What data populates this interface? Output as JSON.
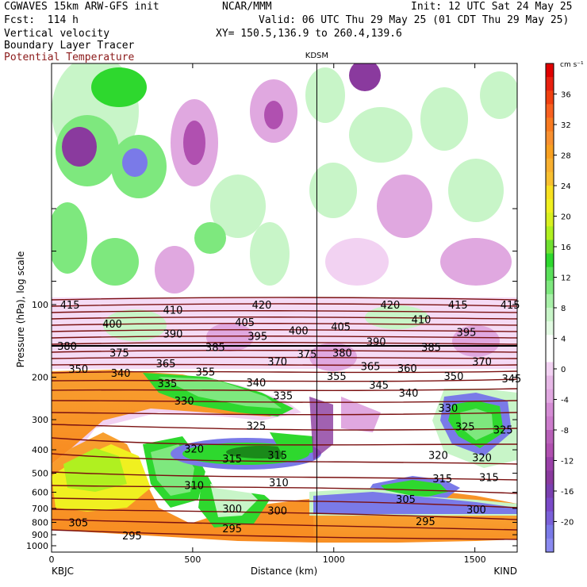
{
  "header": {
    "left": [
      "CGWAVES 15km ARW-GFS init",
      "Fcst:  114 h",
      "Vertical velocity",
      "Boundary Layer Tracer",
      "Potential Temperature"
    ],
    "center": "NCAR/MMM",
    "right": [
      "Init: 12 UTC Sat 24 May 25",
      "Valid: 06 UTC Thu 29 May 25 (01 CDT Thu 29 May 25)",
      "XY= 150.5,136.9 to 260.4,139.6"
    ]
  },
  "colors": {
    "theta_contour": "#7a1010",
    "ascent_ramp": [
      "#eeffee",
      "#c8f5c8",
      "#7ee87e",
      "#2ed82e",
      "#b0f020",
      "#f0f020",
      "#f8c030",
      "#f8a020",
      "#f87a20",
      "#f04010",
      "#e00000",
      "#c00000"
    ],
    "descent_ramp": [
      "#f2d2f2",
      "#e0a8e0",
      "#cc7ccc",
      "#b050b0",
      "#8a3a9e",
      "#7a4ac8",
      "#7a7ae8"
    ],
    "tracer": "#e06010"
  },
  "chart_data": {
    "type": "heatmap",
    "title": "KDSM",
    "xlabel": "Distance (km)",
    "ylabel": "Pressure (hPa), log scale",
    "xlim": [
      0,
      1650
    ],
    "ylim": [
      1000,
      0
    ],
    "y_scale": "log",
    "x_ticks": [
      0,
      500,
      1000,
      1500
    ],
    "y_ticks": [
      100,
      200,
      300,
      400,
      500,
      600,
      700,
      800,
      900,
      1000
    ],
    "x_endpoints": [
      "KBJC",
      "KIND"
    ],
    "marker_x_km": 940,
    "marker_label": "KDSM",
    "colorbar": {
      "unit": "cm s⁻¹",
      "labels": [
        36,
        32,
        28,
        24,
        20,
        16,
        12,
        8,
        4,
        0,
        -4,
        -8,
        -12,
        -16,
        -20
      ]
    },
    "theta_labels": [
      {
        "v": "415",
        "x": 65,
        "p": 100
      },
      {
        "v": "410",
        "x": 430,
        "p": 105
      },
      {
        "v": "420",
        "x": 745,
        "p": 100
      },
      {
        "v": "420",
        "x": 1200,
        "p": 100
      },
      {
        "v": "415",
        "x": 1440,
        "p": 100
      },
      {
        "v": "415",
        "x": 1625,
        "p": 100
      },
      {
        "v": "400",
        "x": 215,
        "p": 120
      },
      {
        "v": "405",
        "x": 685,
        "p": 118
      },
      {
        "v": "410",
        "x": 1310,
        "p": 115
      },
      {
        "v": "390",
        "x": 430,
        "p": 132
      },
      {
        "v": "395",
        "x": 730,
        "p": 135
      },
      {
        "v": "400",
        "x": 875,
        "p": 128
      },
      {
        "v": "405",
        "x": 1025,
        "p": 123
      },
      {
        "v": "395",
        "x": 1470,
        "p": 130
      },
      {
        "v": "380",
        "x": 55,
        "p": 148
      },
      {
        "v": "375",
        "x": 240,
        "p": 158
      },
      {
        "v": "385",
        "x": 580,
        "p": 150
      },
      {
        "v": "390",
        "x": 1150,
        "p": 142
      },
      {
        "v": "385",
        "x": 1345,
        "p": 150
      },
      {
        "v": "365",
        "x": 405,
        "p": 175
      },
      {
        "v": "370",
        "x": 800,
        "p": 172
      },
      {
        "v": "375",
        "x": 905,
        "p": 160
      },
      {
        "v": "380",
        "x": 1030,
        "p": 158
      },
      {
        "v": "365",
        "x": 1130,
        "p": 180
      },
      {
        "v": "360",
        "x": 1260,
        "p": 183
      },
      {
        "v": "370",
        "x": 1525,
        "p": 172
      },
      {
        "v": "350",
        "x": 95,
        "p": 185
      },
      {
        "v": "340",
        "x": 245,
        "p": 192
      },
      {
        "v": "355",
        "x": 545,
        "p": 190
      },
      {
        "v": "340",
        "x": 725,
        "p": 210
      },
      {
        "v": "355",
        "x": 1010,
        "p": 198
      },
      {
        "v": "350",
        "x": 1425,
        "p": 198
      },
      {
        "v": "345",
        "x": 1630,
        "p": 202
      },
      {
        "v": "335",
        "x": 410,
        "p": 212
      },
      {
        "v": "345",
        "x": 1160,
        "p": 215
      },
      {
        "v": "340",
        "x": 1265,
        "p": 232
      },
      {
        "v": "330",
        "x": 470,
        "p": 250
      },
      {
        "v": "335",
        "x": 820,
        "p": 238
      },
      {
        "v": "330",
        "x": 1405,
        "p": 268
      },
      {
        "v": "325",
        "x": 725,
        "p": 318
      },
      {
        "v": "325",
        "x": 1465,
        "p": 320
      },
      {
        "v": "325",
        "x": 1600,
        "p": 330
      },
      {
        "v": "320",
        "x": 505,
        "p": 395
      },
      {
        "v": "320",
        "x": 1370,
        "p": 420
      },
      {
        "v": "320",
        "x": 1525,
        "p": 430
      },
      {
        "v": "315",
        "x": 640,
        "p": 435
      },
      {
        "v": "315",
        "x": 800,
        "p": 420
      },
      {
        "v": "315",
        "x": 1385,
        "p": 525
      },
      {
        "v": "315",
        "x": 1550,
        "p": 520
      },
      {
        "v": "310",
        "x": 505,
        "p": 560
      },
      {
        "v": "310",
        "x": 805,
        "p": 545
      },
      {
        "v": "305",
        "x": 1255,
        "p": 640
      },
      {
        "v": "300",
        "x": 640,
        "p": 700
      },
      {
        "v": "300",
        "x": 800,
        "p": 715
      },
      {
        "v": "300",
        "x": 1505,
        "p": 705
      },
      {
        "v": "305",
        "x": 95,
        "p": 800
      },
      {
        "v": "295",
        "x": 640,
        "p": 845
      },
      {
        "v": "295",
        "x": 1325,
        "p": 790
      },
      {
        "v": "295",
        "x": 285,
        "p": 905
      }
    ]
  }
}
